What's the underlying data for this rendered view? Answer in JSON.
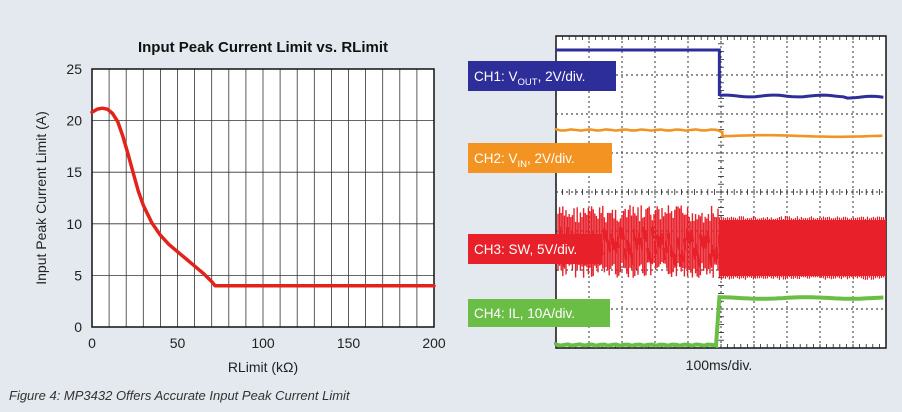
{
  "chart_data": [
    {
      "type": "line",
      "title": "Input Peak Current Limit vs. RLimit",
      "xlabel": "RLimit (kΩ)",
      "ylabel": "Input Peak Current Limit (A)",
      "xlim": [
        0,
        200
      ],
      "ylim": [
        0,
        25
      ],
      "xticks": [
        0,
        50,
        100,
        150,
        200
      ],
      "yticks": [
        0,
        5,
        10,
        15,
        20,
        25
      ],
      "grid": true,
      "series": [
        {
          "color": "#e2231a",
          "x": [
            0,
            3,
            6,
            9,
            12,
            15,
            18,
            21,
            24,
            27,
            30,
            35,
            40,
            45,
            50,
            55,
            60,
            65,
            70,
            72,
            80,
            100,
            150,
            200
          ],
          "y": [
            20.8,
            21.1,
            21.2,
            21.1,
            20.7,
            19.9,
            18.5,
            16.8,
            15.0,
            13.2,
            11.8,
            10.1,
            8.9,
            8.0,
            7.3,
            6.6,
            5.9,
            5.2,
            4.4,
            4.0,
            4.0,
            4.0,
            4.0,
            4.0
          ]
        }
      ]
    },
    {
      "type": "oscilloscope",
      "xlabel": "100ms/div.",
      "grid": true,
      "channels": [
        {
          "id": "CH1",
          "label_prefix": "CH1: V",
          "label_sub": "OUT",
          "label_suffix": ", 2V/div.",
          "color": "#2e2e9a"
        },
        {
          "id": "CH2",
          "label_prefix": "CH2: V",
          "label_sub": "IN",
          "label_suffix": ", 2V/div.",
          "color": "#f39422"
        },
        {
          "id": "CH3",
          "label_prefix": "CH3: SW, 5V/div.",
          "label_sub": "",
          "label_suffix": "",
          "color": "#e8202a"
        },
        {
          "id": "CH4",
          "label_prefix": "CH4: IL, 10A/div.",
          "label_sub": "",
          "label_suffix": "",
          "color": "#6abd45"
        }
      ]
    }
  ],
  "caption": "Figure 4: MP3432 Offers Accurate Input Peak Current Limit"
}
